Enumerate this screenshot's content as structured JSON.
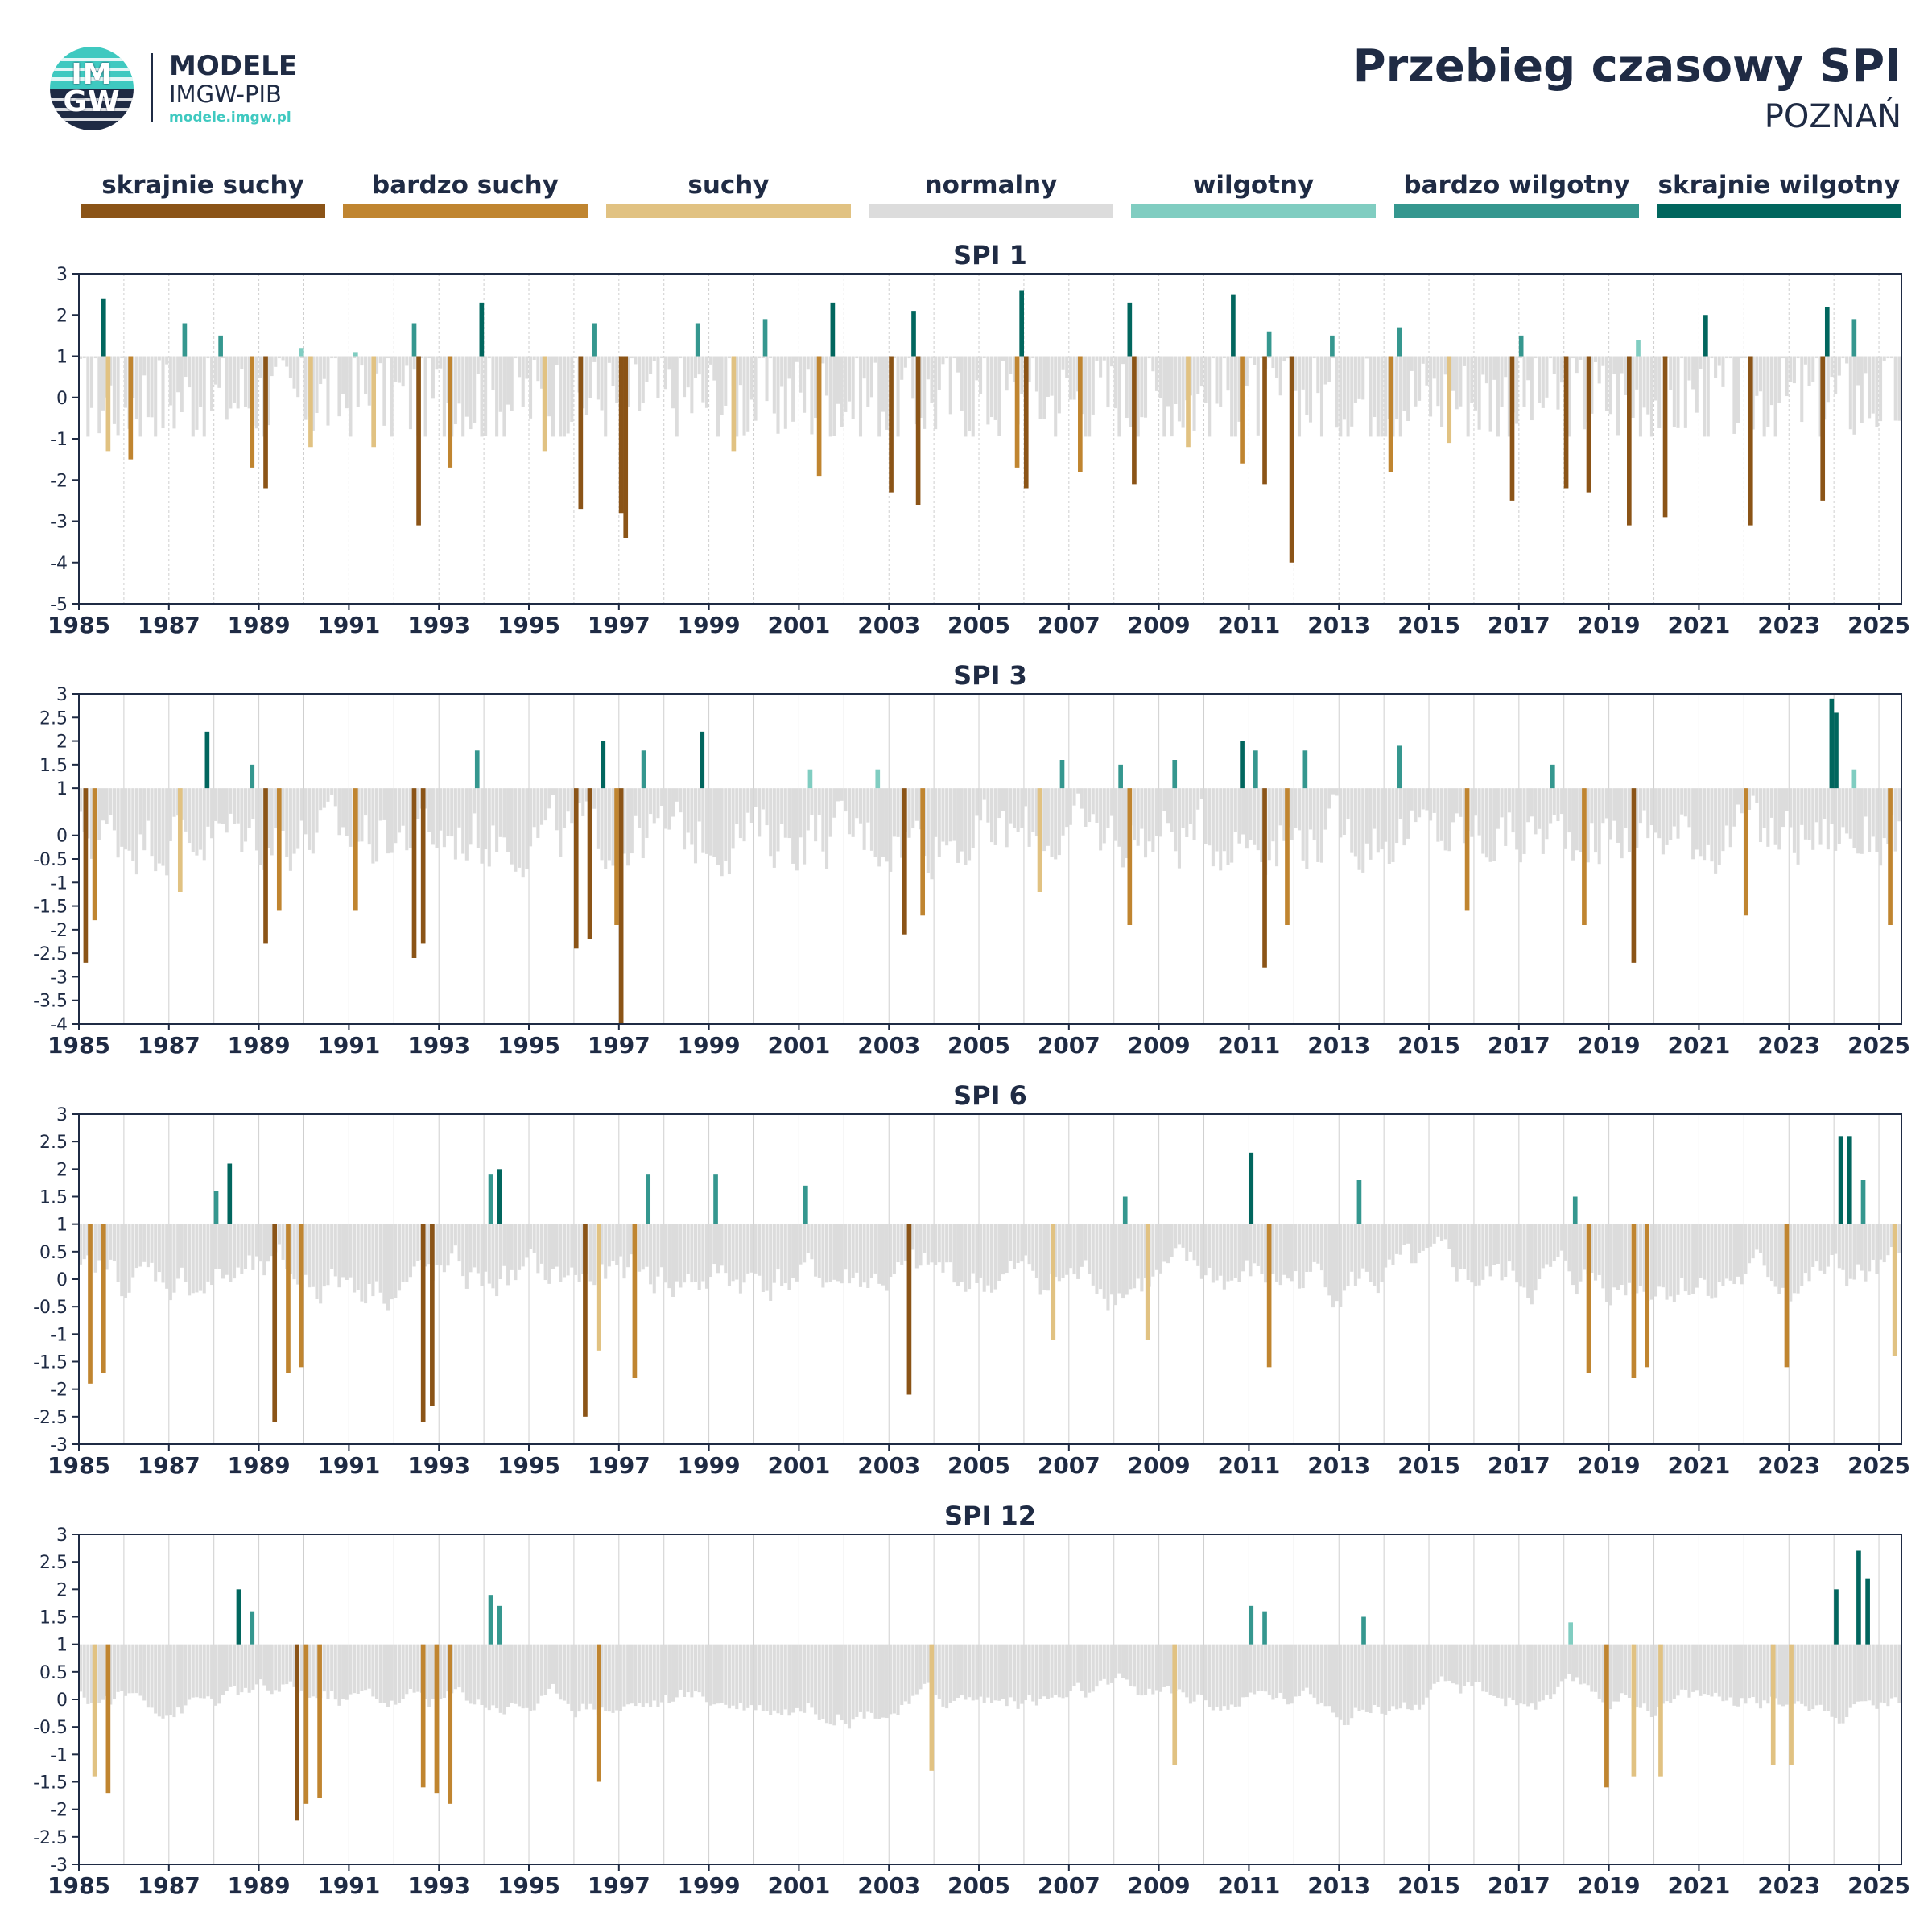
{
  "header": {
    "logo_mark_top": "IM",
    "logo_mark_bottom": "GW",
    "logo_line1": "MODELE",
    "logo_line2": "IMGW-PIB",
    "logo_line3": "modele.imgw.pl",
    "title": "Przebieg czasowy SPI",
    "subtitle": "POZNAŃ"
  },
  "legend": [
    {
      "label": "skrajnie suchy",
      "color": "#8b5417"
    },
    {
      "label": "bardzo suchy",
      "color": "#c08530"
    },
    {
      "label": "suchy",
      "color": "#e1c282"
    },
    {
      "label": "normalny",
      "color": "#dcdcdc"
    },
    {
      "label": "wilgotny",
      "color": "#80cdc1"
    },
    {
      "label": "bardzo wilgotny",
      "color": "#35978f"
    },
    {
      "label": "skrajnie wilgotny",
      "color": "#01665e"
    }
  ],
  "chart_data": [
    {
      "type": "bar",
      "title": "SPI 1",
      "x_range": [
        1985,
        2025.5
      ],
      "ylim": [
        -5,
        3
      ],
      "yticks": [
        "3",
        "2",
        "1",
        "0",
        "-1",
        "-2",
        "-3",
        "-4",
        "-5"
      ],
      "yticks_values": [
        3,
        2,
        1,
        0,
        -1,
        -2,
        -3,
        -4,
        -5
      ],
      "xticks": [
        "1985",
        "1987",
        "1989",
        "1991",
        "1993",
        "1995",
        "1997",
        "1999",
        "2001",
        "2003",
        "2005",
        "2007",
        "2009",
        "2011",
        "2013",
        "2015",
        "2017",
        "2019",
        "2021",
        "2023",
        "2025"
      ],
      "series": [
        {
          "x": [
            1985.5,
            1987.3,
            1988.1,
            1989.9,
            1991.1,
            1992.4,
            1993.9,
            1996.4,
            1998.7,
            2000.2,
            2001.7,
            2003.5,
            2005.9,
            2008.3,
            2010.6,
            2011.4,
            2012.8,
            2014.3,
            2017.0,
            2019.6,
            2021.1,
            2023.8,
            2024.4
          ],
          "values": [
            2.4,
            1.8,
            1.5,
            1.2,
            1.1,
            1.8,
            2.3,
            1.8,
            1.8,
            1.9,
            2.3,
            2.1,
            2.6,
            2.3,
            2.5,
            1.6,
            1.5,
            1.7,
            1.5,
            1.4,
            2.0,
            2.2,
            1.9
          ]
        },
        {
          "x": [
            1985.6,
            1986.1,
            1988.8,
            1989.1,
            1990.1,
            1991.5,
            1992.5,
            1993.2,
            1995.3,
            1996.1,
            1997.0,
            1997.1,
            1999.5,
            2001.4,
            2003.0,
            2003.6,
            2005.8,
            2006.0,
            2007.2,
            2008.4,
            2009.6,
            2010.8,
            2011.3,
            2011.9,
            2014.1,
            2015.4,
            2016.8,
            2018.0,
            2018.5,
            2019.4,
            2020.2,
            2022.1,
            2023.7
          ],
          "values": [
            -1.3,
            -1.5,
            -1.7,
            -2.2,
            -1.2,
            -1.2,
            -3.1,
            -1.7,
            -1.3,
            -2.7,
            -2.8,
            -3.4,
            -1.3,
            -1.9,
            -2.3,
            -2.6,
            -1.7,
            -2.2,
            -1.8,
            -2.1,
            -1.2,
            -1.6,
            -2.1,
            -4.0,
            -1.8,
            -1.1,
            -2.5,
            -2.2,
            -2.3,
            -3.1,
            -2.9,
            -3.1,
            -2.5
          ]
        }
      ]
    },
    {
      "type": "bar",
      "title": "SPI 3",
      "x_range": [
        1985,
        2025.5
      ],
      "ylim": [
        -4,
        3
      ],
      "yticks": [
        "3",
        "2.5",
        "2",
        "1.5",
        "1",
        "0",
        "-0.5",
        "-1",
        "-1.5",
        "-2",
        "-2.5",
        "-3",
        "-3.5",
        "-4"
      ],
      "yticks_values": [
        3,
        2.5,
        2,
        1.5,
        1,
        0,
        -0.5,
        -1,
        -1.5,
        -2,
        -2.5,
        -3,
        -3.5,
        -4
      ],
      "xticks": [
        "1985",
        "1987",
        "1989",
        "1991",
        "1993",
        "1995",
        "1997",
        "1999",
        "2001",
        "2003",
        "2005",
        "2007",
        "2009",
        "2011",
        "2013",
        "2015",
        "2017",
        "2019",
        "2021",
        "2023",
        "2025"
      ],
      "series": [
        {
          "x": [
            1987.8,
            1988.8,
            1993.8,
            1996.6,
            1997.5,
            1998.8,
            2001.2,
            2002.7,
            2006.8,
            2008.1,
            2009.3,
            2010.8,
            2011.1,
            2012.2,
            2014.3,
            2017.7,
            2023.9,
            2024.0,
            2024.4
          ],
          "values": [
            2.2,
            1.5,
            1.8,
            2.0,
            1.8,
            2.2,
            1.4,
            1.4,
            1.6,
            1.5,
            1.6,
            2.0,
            1.8,
            1.8,
            1.9,
            1.5,
            2.9,
            2.6,
            1.4
          ]
        },
        {
          "x": [
            1985.1,
            1985.3,
            1987.2,
            1989.1,
            1989.4,
            1991.1,
            1992.4,
            1992.6,
            1996.0,
            1996.3,
            1996.9,
            1997.0,
            2003.3,
            2003.7,
            2006.3,
            2008.3,
            2011.3,
            2011.8,
            2015.8,
            2018.4,
            2019.5,
            2022.0,
            2025.2
          ],
          "values": [
            -2.7,
            -1.8,
            -1.2,
            -2.3,
            -1.6,
            -1.6,
            -2.6,
            -2.3,
            -2.4,
            -2.2,
            -1.9,
            -4.0,
            -2.1,
            -1.7,
            -1.2,
            -1.9,
            -2.8,
            -1.9,
            -1.6,
            -1.9,
            -2.7,
            -1.7,
            -1.9
          ]
        }
      ]
    },
    {
      "type": "bar",
      "title": "SPI 6",
      "x_range": [
        1985,
        2025.5
      ],
      "ylim": [
        -3,
        3
      ],
      "yticks": [
        "3",
        "2.5",
        "2",
        "1.5",
        "1",
        "0.5",
        "0",
        "-0.5",
        "-1",
        "-1.5",
        "-2",
        "-2.5",
        "-3"
      ],
      "yticks_values": [
        3,
        2.5,
        2,
        1.5,
        1,
        0.5,
        0,
        -0.5,
        -1,
        -1.5,
        -2,
        -2.5,
        -3
      ],
      "xticks": [
        "1985",
        "1987",
        "1989",
        "1991",
        "1993",
        "1995",
        "1997",
        "1999",
        "2001",
        "2003",
        "2005",
        "2007",
        "2009",
        "2011",
        "2013",
        "2015",
        "2017",
        "2019",
        "2021",
        "2023",
        "2025"
      ],
      "series": [
        {
          "x": [
            1988.0,
            1988.3,
            1994.1,
            1994.3,
            1997.6,
            1999.1,
            2001.1,
            2008.2,
            2011.0,
            2013.4,
            2018.2,
            2024.1,
            2024.3,
            2024.6
          ],
          "values": [
            1.6,
            2.1,
            1.9,
            2.0,
            1.9,
            1.9,
            1.7,
            1.5,
            2.3,
            1.8,
            1.5,
            2.6,
            2.6,
            1.8
          ]
        },
        {
          "x": [
            1985.2,
            1985.5,
            1989.3,
            1989.6,
            1989.9,
            1992.6,
            1992.8,
            1996.2,
            1996.5,
            1997.3,
            2003.4,
            2006.6,
            2008.7,
            2011.4,
            2018.5,
            2019.5,
            2019.8,
            2022.9,
            2025.3
          ],
          "values": [
            -1.9,
            -1.7,
            -2.6,
            -1.7,
            -1.6,
            -2.6,
            -2.3,
            -2.5,
            -1.3,
            -1.8,
            -2.1,
            -1.1,
            -1.1,
            -1.6,
            -1.7,
            -1.8,
            -1.6,
            -1.6,
            -1.4
          ]
        }
      ]
    },
    {
      "type": "bar",
      "title": "SPI 12",
      "x_range": [
        1985,
        2025.5
      ],
      "ylim": [
        -3,
        3
      ],
      "yticks": [
        "3",
        "2.5",
        "2",
        "1.5",
        "1",
        "0.5",
        "0",
        "-0.5",
        "-1",
        "-1.5",
        "-2",
        "-2.5",
        "-3"
      ],
      "yticks_values": [
        3,
        2.5,
        2,
        1.5,
        1,
        0.5,
        0,
        -0.5,
        -1,
        -1.5,
        -2,
        -2.5,
        -3
      ],
      "xticks": [
        "1985",
        "1987",
        "1989",
        "1991",
        "1993",
        "1995",
        "1997",
        "1999",
        "2001",
        "2003",
        "2005",
        "2007",
        "2009",
        "2011",
        "2013",
        "2015",
        "2017",
        "2019",
        "2021",
        "2023",
        "2025"
      ],
      "series": [
        {
          "x": [
            1988.5,
            1988.8,
            1994.1,
            1994.3,
            2011.0,
            2011.3,
            2013.5,
            2018.1,
            2024.0,
            2024.5,
            2024.7
          ],
          "values": [
            2.0,
            1.6,
            1.9,
            1.7,
            1.7,
            1.6,
            1.5,
            1.4,
            2.0,
            2.7,
            2.2
          ]
        },
        {
          "x": [
            1985.3,
            1985.6,
            1989.8,
            1990.0,
            1990.3,
            1992.6,
            1992.9,
            1993.2,
            1996.5,
            2003.9,
            2009.3,
            2018.9,
            2019.5,
            2020.1,
            2022.6,
            2023.0
          ],
          "values": [
            -1.4,
            -1.7,
            -2.2,
            -1.9,
            -1.8,
            -1.6,
            -1.7,
            -1.9,
            -1.5,
            -1.3,
            -1.2,
            -1.6,
            -1.4,
            -1.4,
            -1.2,
            -1.2
          ]
        }
      ]
    }
  ]
}
